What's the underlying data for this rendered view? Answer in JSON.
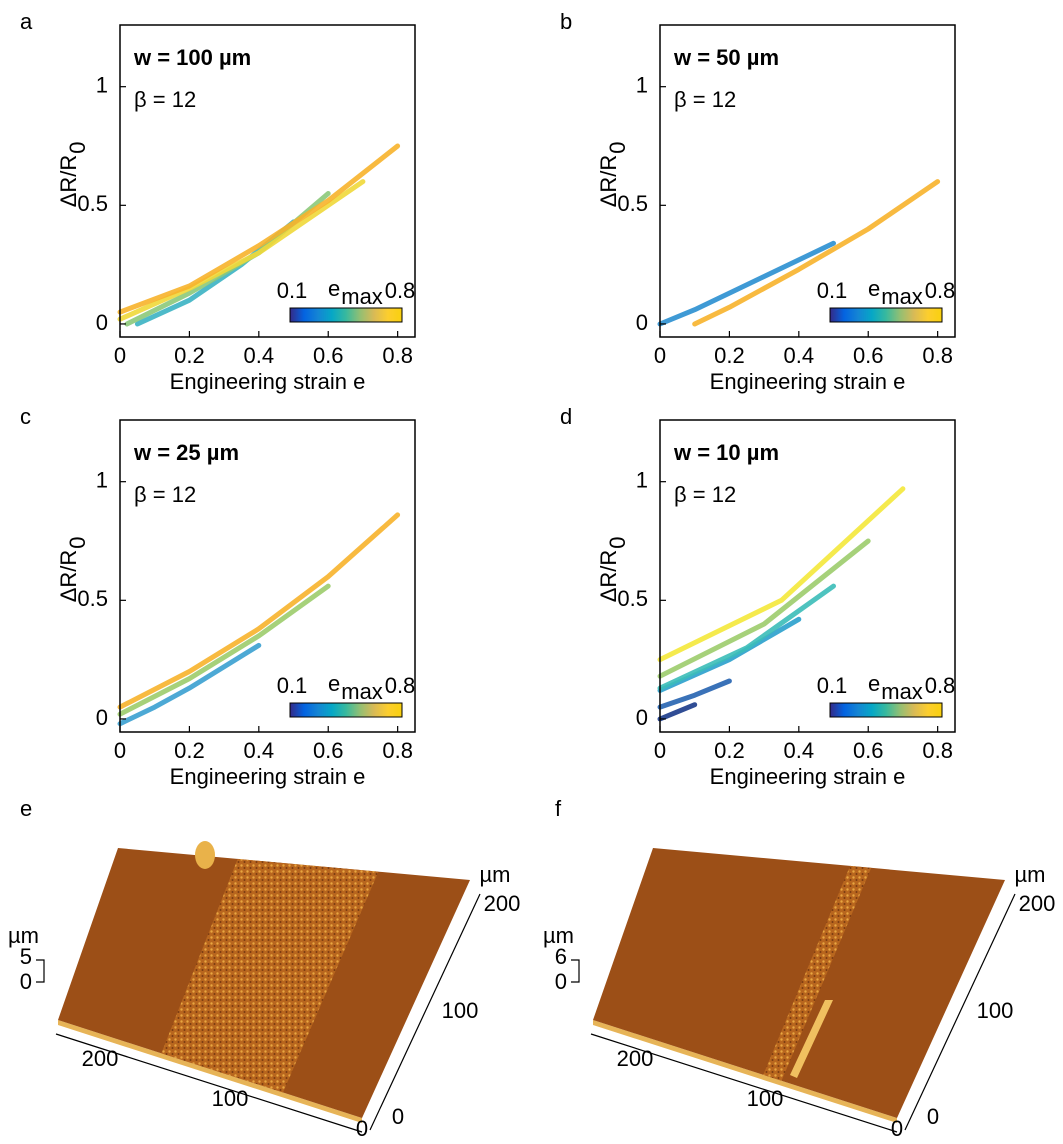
{
  "chart_data": [
    {
      "type": "line",
      "panel": "a",
      "title": "w = 100 µm",
      "annotation": "β = 12",
      "xlabel": "Engineering strain e",
      "ylabel": "ΔR/R",
      "ylabel_sub": "0",
      "xlim": [
        0,
        0.85
      ],
      "ylim": [
        -0.055,
        1.26
      ],
      "xticks": [
        0,
        0.2,
        0.4,
        0.6,
        0.8
      ],
      "yticks": [
        0,
        0.5,
        1
      ],
      "colorbar": {
        "label": "e",
        "label_sub": "max",
        "min": 0.1,
        "max": 0.8,
        "colors": [
          "#352a87",
          "#0363e1",
          "#1485d4",
          "#06a7c6",
          "#38b99e",
          "#92bf73",
          "#d9ba56",
          "#fcce2e",
          "#f9d00e"
        ]
      },
      "series": [
        {
          "color": "#3bb3c3",
          "x": [
            0.05,
            0.2,
            0.35,
            0.5
          ],
          "values": [
            0,
            0.1,
            0.25,
            0.43
          ]
        },
        {
          "color": "#8cc97a",
          "x": [
            0.02,
            0.2,
            0.4,
            0.6
          ],
          "values": [
            0,
            0.13,
            0.3,
            0.55
          ]
        },
        {
          "color": "#f0d83a",
          "x": [
            0,
            0.2,
            0.4,
            0.6,
            0.7
          ],
          "values": [
            0.02,
            0.15,
            0.3,
            0.5,
            0.6
          ]
        },
        {
          "color": "#f7b32b",
          "x": [
            0,
            0.2,
            0.4,
            0.6,
            0.8
          ],
          "values": [
            0.05,
            0.16,
            0.33,
            0.52,
            0.75
          ]
        }
      ]
    },
    {
      "type": "line",
      "panel": "b",
      "title": "w = 50 µm",
      "annotation": "β = 12",
      "xlabel": "Engineering strain e",
      "ylabel": "ΔR/R",
      "ylabel_sub": "0",
      "xlim": [
        0,
        0.85
      ],
      "ylim": [
        -0.055,
        1.26
      ],
      "xticks": [
        0,
        0.2,
        0.4,
        0.6,
        0.8
      ],
      "yticks": [
        0,
        0.5,
        1
      ],
      "colorbar": {
        "label": "e",
        "label_sub": "max",
        "min": 0.1,
        "max": 0.8,
        "colors": [
          "#352a87",
          "#0363e1",
          "#1485d4",
          "#06a7c6",
          "#38b99e",
          "#92bf73",
          "#d9ba56",
          "#fcce2e",
          "#f9d00e"
        ]
      },
      "series": [
        {
          "color": "#2a8fd0",
          "x": [
            0,
            0.1,
            0.2,
            0.3,
            0.4,
            0.5
          ],
          "values": [
            0,
            0.06,
            0.13,
            0.2,
            0.27,
            0.34
          ]
        },
        {
          "color": "#f7b32b",
          "x": [
            0.1,
            0.2,
            0.4,
            0.6,
            0.8
          ],
          "values": [
            0,
            0.07,
            0.23,
            0.4,
            0.6
          ]
        }
      ]
    },
    {
      "type": "line",
      "panel": "c",
      "title": "w = 25 µm",
      "annotation": "β = 12",
      "xlabel": "Engineering strain e",
      "ylabel": "ΔR/R",
      "ylabel_sub": "0",
      "xlim": [
        0,
        0.85
      ],
      "ylim": [
        -0.055,
        1.26
      ],
      "xticks": [
        0,
        0.2,
        0.4,
        0.6,
        0.8
      ],
      "yticks": [
        0,
        0.5,
        1
      ],
      "colorbar": {
        "label": "e",
        "label_sub": "max",
        "min": 0.1,
        "max": 0.8,
        "colors": [
          "#352a87",
          "#0363e1",
          "#1485d4",
          "#06a7c6",
          "#38b99e",
          "#92bf73",
          "#d9ba56",
          "#fcce2e",
          "#f9d00e"
        ]
      },
      "series": [
        {
          "color": "#3aa0d0",
          "x": [
            0,
            0.1,
            0.2,
            0.3,
            0.4
          ],
          "values": [
            -0.02,
            0.05,
            0.13,
            0.22,
            0.31
          ]
        },
        {
          "color": "#9ccc6b",
          "x": [
            0,
            0.2,
            0.4,
            0.6
          ],
          "values": [
            0.02,
            0.17,
            0.35,
            0.56
          ]
        },
        {
          "color": "#f7b32b",
          "x": [
            0,
            0.2,
            0.4,
            0.6,
            0.8
          ],
          "values": [
            0.05,
            0.2,
            0.38,
            0.6,
            0.86
          ]
        }
      ]
    },
    {
      "type": "line",
      "panel": "d",
      "title": "w = 10 µm",
      "annotation": "β = 12",
      "xlabel": "Engineering strain e",
      "ylabel": "ΔR/R",
      "ylabel_sub": "0",
      "xlim": [
        0,
        0.85
      ],
      "ylim": [
        -0.055,
        1.26
      ],
      "xticks": [
        0,
        0.2,
        0.4,
        0.6,
        0.8
      ],
      "yticks": [
        0,
        0.5,
        1
      ],
      "colorbar": {
        "label": "e",
        "label_sub": "max",
        "min": 0.1,
        "max": 0.8,
        "colors": [
          "#352a87",
          "#0363e1",
          "#1485d4",
          "#06a7c6",
          "#38b99e",
          "#92bf73",
          "#d9ba56",
          "#fcce2e",
          "#f9d00e"
        ]
      },
      "series": [
        {
          "color": "#1a3a8a",
          "x": [
            0,
            0.05,
            0.1
          ],
          "values": [
            0,
            0.03,
            0.06
          ]
        },
        {
          "color": "#2563b0",
          "x": [
            0,
            0.1,
            0.2
          ],
          "values": [
            0.05,
            0.1,
            0.16
          ]
        },
        {
          "color": "#2aa0cc",
          "x": [
            0,
            0.2,
            0.4
          ],
          "values": [
            0.12,
            0.25,
            0.42
          ]
        },
        {
          "color": "#3bbcb8",
          "x": [
            0,
            0.25,
            0.5
          ],
          "values": [
            0.13,
            0.3,
            0.56
          ]
        },
        {
          "color": "#9ccc6b",
          "x": [
            0,
            0.3,
            0.6
          ],
          "values": [
            0.18,
            0.4,
            0.75
          ]
        },
        {
          "color": "#f4e83a",
          "x": [
            0,
            0.35,
            0.7
          ],
          "values": [
            0.25,
            0.5,
            0.97
          ]
        }
      ]
    }
  ],
  "afm_panels": [
    {
      "letter": "e",
      "z_unit": "µm",
      "z_ticks": [
        "5",
        "0"
      ],
      "x_ticks": [
        "200",
        "100",
        "0"
      ],
      "y_unit": "µm",
      "y_ticks": [
        "200",
        "100",
        "0"
      ]
    },
    {
      "letter": "f",
      "z_unit": "µm",
      "z_ticks": [
        "6",
        "0"
      ],
      "x_ticks": [
        "200",
        "100",
        "0"
      ],
      "y_unit": "µm",
      "y_ticks": [
        "200",
        "100",
        "0"
      ]
    }
  ]
}
